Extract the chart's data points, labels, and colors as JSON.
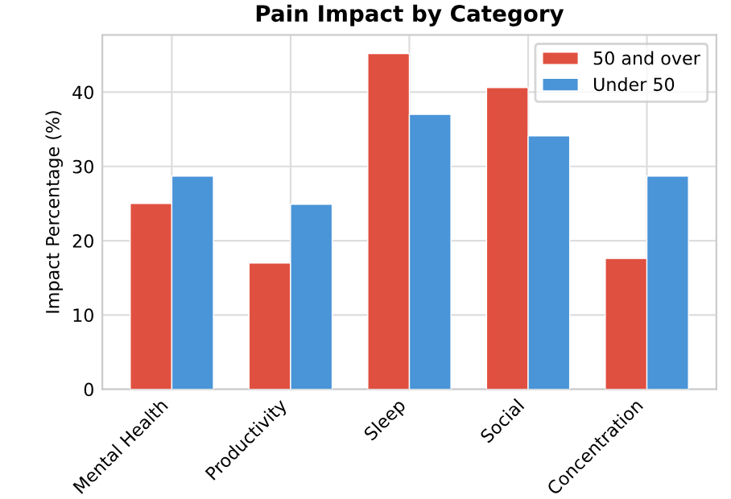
{
  "chart_data": {
    "type": "bar",
    "title": "Pain Impact by Category",
    "ylabel": "Impact Percentage (%)",
    "categories": [
      "Mental Health",
      "Productivity",
      "Sleep",
      "Social",
      "Concentration"
    ],
    "series": [
      {
        "name": "50 and over",
        "color": "#e05040",
        "values": [
          25.0,
          17.0,
          45.2,
          40.6,
          17.6
        ]
      },
      {
        "name": "Under 50",
        "color": "#4a94d8",
        "values": [
          28.7,
          24.9,
          37.0,
          34.1,
          28.7
        ]
      }
    ],
    "ylim": [
      0,
      47.7
    ],
    "yticks": [
      0,
      10,
      20,
      30,
      40
    ],
    "grid": true,
    "legend": "top right"
  }
}
